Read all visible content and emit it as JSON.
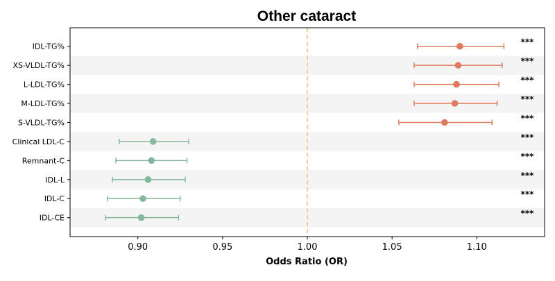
{
  "chart_data": {
    "type": "forest",
    "title": "Other cataract",
    "xlabel": "Odds Ratio (OR)",
    "xlim": [
      0.86,
      1.14
    ],
    "xticks": [
      "0.90",
      "0.95",
      "1.00",
      "1.05",
      "1.10"
    ],
    "xtick_values": [
      0.9,
      0.95,
      1.0,
      1.05,
      1.1
    ],
    "reference_line": 1.0,
    "colors": {
      "positive": "#e07b5f",
      "negative": "#86b89e",
      "reference": "#f5c27a",
      "band": "#f4f4f4"
    },
    "rows": [
      {
        "label": "IDL-TG%",
        "or": 1.09,
        "lo": 1.065,
        "hi": 1.116,
        "sig": "***",
        "group": "positive"
      },
      {
        "label": "XS-VLDL-TG%",
        "or": 1.089,
        "lo": 1.063,
        "hi": 1.115,
        "sig": "***",
        "group": "positive"
      },
      {
        "label": "L-LDL-TG%",
        "or": 1.088,
        "lo": 1.063,
        "hi": 1.113,
        "sig": "***",
        "group": "positive"
      },
      {
        "label": "M-LDL-TG%",
        "or": 1.087,
        "lo": 1.063,
        "hi": 1.112,
        "sig": "***",
        "group": "positive"
      },
      {
        "label": "S-VLDL-TG%",
        "or": 1.081,
        "lo": 1.054,
        "hi": 1.109,
        "sig": "***",
        "group": "positive"
      },
      {
        "label": "Clinical LDL-C",
        "or": 0.909,
        "lo": 0.889,
        "hi": 0.93,
        "sig": "***",
        "group": "negative"
      },
      {
        "label": "Remnant-C",
        "or": 0.908,
        "lo": 0.887,
        "hi": 0.929,
        "sig": "***",
        "group": "negative"
      },
      {
        "label": "IDL-L",
        "or": 0.906,
        "lo": 0.885,
        "hi": 0.928,
        "sig": "***",
        "group": "negative"
      },
      {
        "label": "IDL-C",
        "or": 0.903,
        "lo": 0.882,
        "hi": 0.925,
        "sig": "***",
        "group": "negative"
      },
      {
        "label": "IDL-CE",
        "or": 0.902,
        "lo": 0.881,
        "hi": 0.924,
        "sig": "***",
        "group": "negative"
      }
    ]
  }
}
